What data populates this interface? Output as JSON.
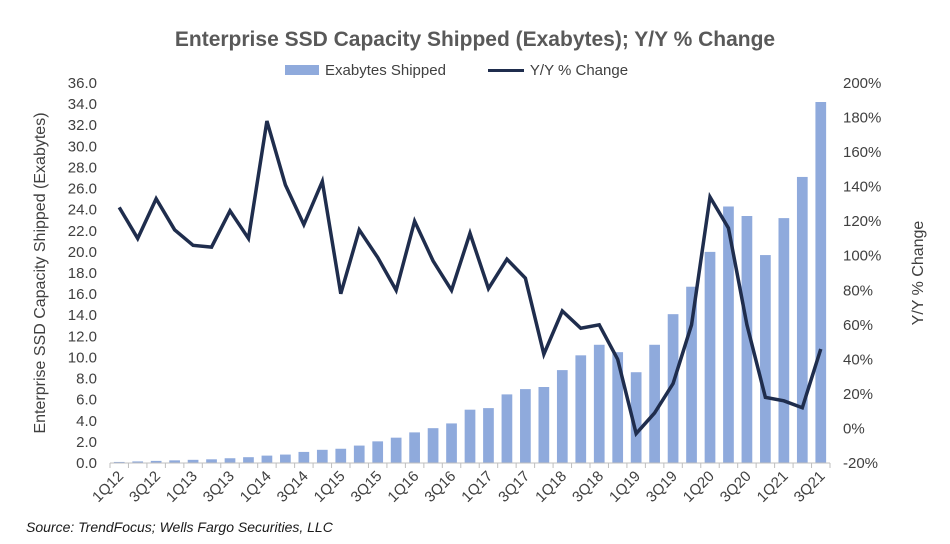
{
  "chart_data": {
    "type": "bar",
    "title": "Enterprise SSD Capacity Shipped (Exabytes); Y/Y % Change",
    "ylabel": "Enterprise SSD Capacity Shipped (Exabytes)",
    "y2label": "Y/Y % Change",
    "ylim": [
      0,
      36
    ],
    "y2lim": [
      -20,
      200
    ],
    "yticks": [
      "0.0",
      "2.0",
      "4.0",
      "6.0",
      "8.0",
      "10.0",
      "12.0",
      "14.0",
      "16.0",
      "18.0",
      "20.0",
      "22.0",
      "24.0",
      "26.0",
      "28.0",
      "30.0",
      "32.0",
      "34.0",
      "36.0"
    ],
    "y2ticks": [
      "-20%",
      "0%",
      "20%",
      "40%",
      "60%",
      "80%",
      "100%",
      "120%",
      "140%",
      "160%",
      "180%",
      "200%"
    ],
    "x_tick_labels": [
      "1Q12",
      "3Q12",
      "1Q13",
      "3Q13",
      "1Q14",
      "3Q14",
      "1Q15",
      "3Q15",
      "1Q16",
      "3Q16",
      "1Q17",
      "3Q17",
      "1Q18",
      "3Q18",
      "1Q19",
      "3Q19",
      "1Q20",
      "3Q20",
      "1Q21",
      "3Q21"
    ],
    "categories": [
      "1Q12",
      "2Q12",
      "3Q12",
      "4Q12",
      "1Q13",
      "2Q13",
      "3Q13",
      "4Q13",
      "1Q14",
      "2Q14",
      "3Q14",
      "4Q14",
      "1Q15",
      "2Q15",
      "3Q15",
      "4Q15",
      "1Q16",
      "2Q16",
      "3Q16",
      "4Q16",
      "1Q17",
      "2Q17",
      "3Q17",
      "4Q17",
      "1Q18",
      "2Q18",
      "3Q18",
      "4Q18",
      "1Q19",
      "2Q19",
      "3Q19",
      "4Q19",
      "1Q20",
      "2Q20",
      "3Q20",
      "4Q20",
      "1Q21",
      "2Q21",
      "3Q21"
    ],
    "series": [
      {
        "name": "Exabytes Shipped",
        "type": "bar",
        "axis": "left",
        "color": "#8faadc",
        "values": [
          0.1,
          0.15,
          0.2,
          0.25,
          0.3,
          0.35,
          0.45,
          0.55,
          0.7,
          0.8,
          1.05,
          1.25,
          1.35,
          1.65,
          2.05,
          2.4,
          2.9,
          3.3,
          3.75,
          5.05,
          5.2,
          6.5,
          7.0,
          7.2,
          8.8,
          10.2,
          11.2,
          10.5,
          8.6,
          11.2,
          14.1,
          16.7,
          20.0,
          24.3,
          23.4,
          19.7,
          23.2,
          27.1,
          34.2
        ]
      },
      {
        "name": "Y/Y % Change",
        "type": "line",
        "axis": "right",
        "color": "#1f2d4d",
        "values": [
          128,
          110,
          133,
          115,
          106,
          105,
          126,
          110,
          178,
          141,
          118,
          143,
          78,
          115,
          99,
          80,
          120,
          97,
          80,
          113,
          81,
          98,
          87,
          43,
          68,
          58,
          60,
          40,
          -3,
          9,
          26,
          60,
          134,
          116,
          60,
          18,
          16,
          12,
          46
        ]
      }
    ],
    "legend_position": "top-center",
    "grid": false
  },
  "source": "Source: TrendFocus; Wells Fargo Securities, LLC"
}
